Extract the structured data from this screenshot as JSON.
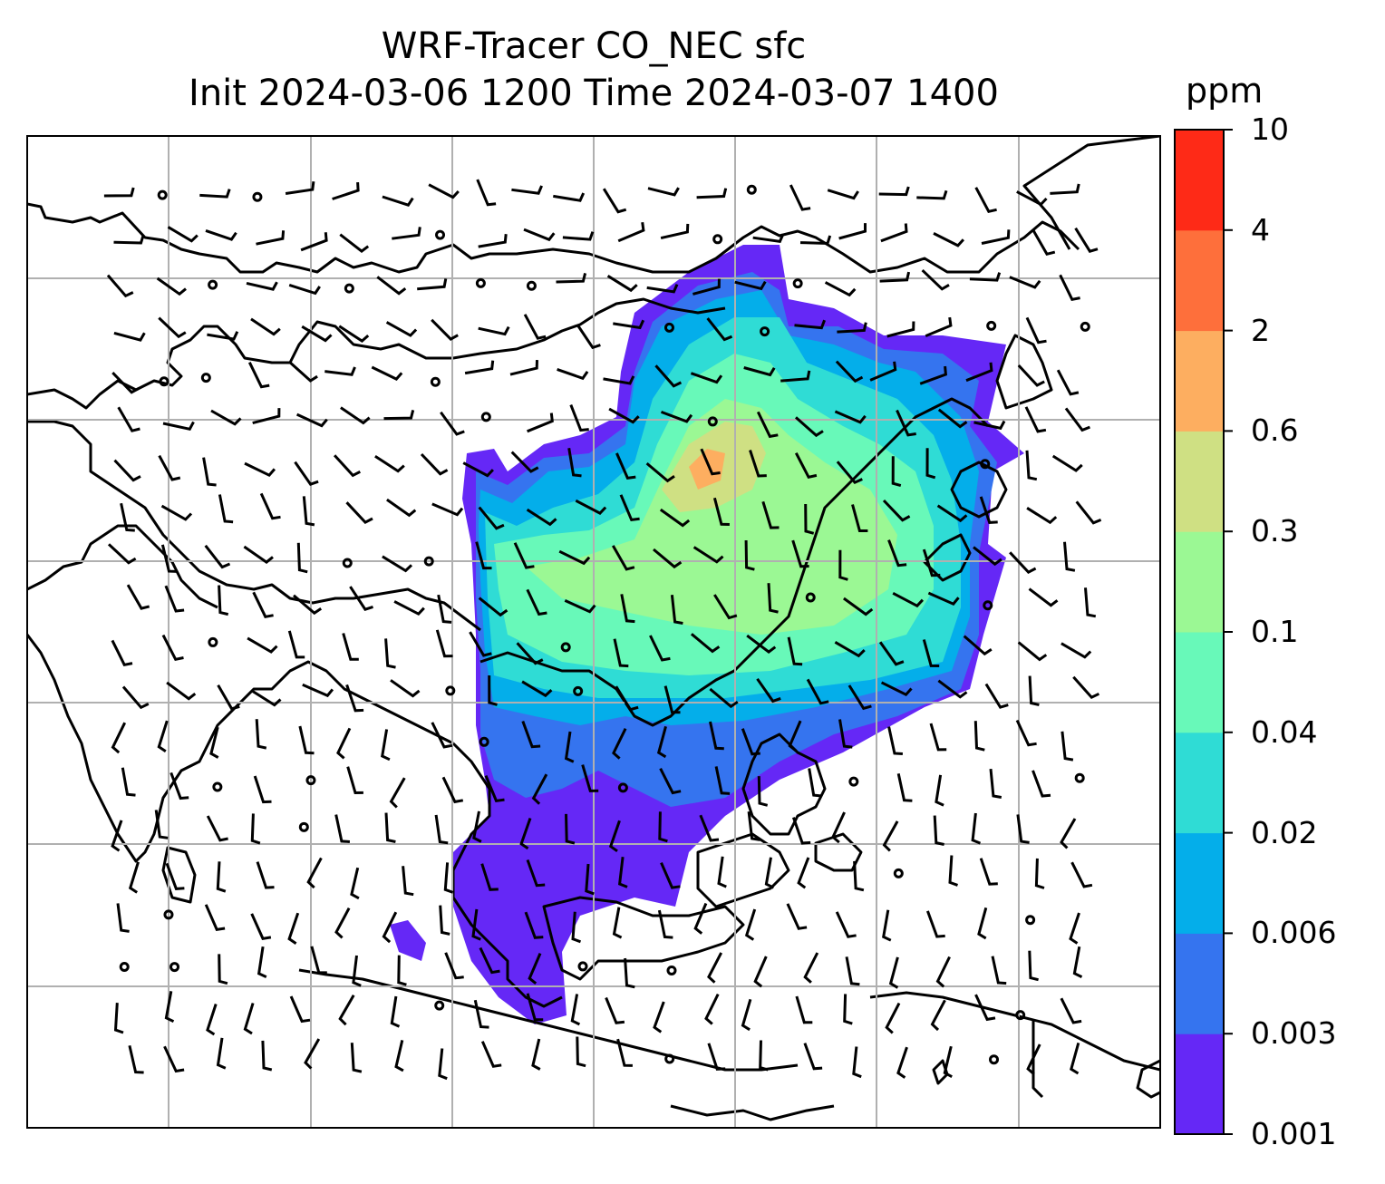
{
  "title": {
    "line1": "WRF-Tracer CO_NEC sfc",
    "line2": "Init 2024-03-06 1200 Time 2024-03-07 1400"
  },
  "colorbar": {
    "units": "ppm",
    "levels": [
      "0.001",
      "0.003",
      "0.006",
      "0.02",
      "0.04",
      "0.1",
      "0.3",
      "0.6",
      "2",
      "4",
      "10"
    ],
    "colors": [
      "#6528f6",
      "#3574ef",
      "#04aeea",
      "#2fdcd5",
      "#68f9b9",
      "#9bf894",
      "#cfe083",
      "#fdae60",
      "#fe6f3b",
      "#fe2a17"
    ]
  },
  "map": {
    "region": "East and Southeast Asia",
    "field": "CO_NEC surface tracer concentration",
    "overlay": "wind barbs",
    "gridlines": true
  }
}
